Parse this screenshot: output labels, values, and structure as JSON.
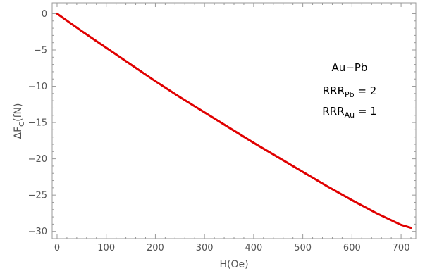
{
  "chart_data": {
    "type": "line",
    "xlabel": "H(Oe)",
    "ylabel": {
      "main": "ΔF",
      "sub": "C",
      "unit": "(fN)"
    },
    "xlim": [
      -10,
      730
    ],
    "ylim": [
      -31,
      1.5
    ],
    "xticks": [
      0,
      100,
      200,
      300,
      400,
      500,
      600,
      700
    ],
    "yticks": [
      0,
      -5,
      -10,
      -15,
      -20,
      -25,
      -30
    ],
    "xtick_labels": [
      "0",
      "100",
      "200",
      "300",
      "400",
      "500",
      "600",
      "700"
    ],
    "ytick_labels": [
      "0",
      "−5",
      "−10",
      "−15",
      "−20",
      "−25",
      "−30"
    ],
    "series": [
      {
        "color": "#e00000",
        "x": [
          0,
          50,
          100,
          150,
          200,
          250,
          300,
          350,
          400,
          450,
          500,
          550,
          600,
          650,
          700,
          720
        ],
        "y": [
          0,
          -2.4,
          -4.7,
          -7.0,
          -9.3,
          -11.5,
          -13.6,
          -15.7,
          -17.8,
          -19.8,
          -21.8,
          -23.8,
          -25.7,
          -27.5,
          -29.1,
          -29.5
        ]
      }
    ],
    "annotations": {
      "line1": "Au−Pb",
      "line2": {
        "main": "RRR",
        "sub": "Pb",
        "tail": " = 2"
      },
      "line3": {
        "main": "RRR",
        "sub": "Au",
        "tail": " = 1"
      }
    },
    "frame_color": "#999999"
  }
}
